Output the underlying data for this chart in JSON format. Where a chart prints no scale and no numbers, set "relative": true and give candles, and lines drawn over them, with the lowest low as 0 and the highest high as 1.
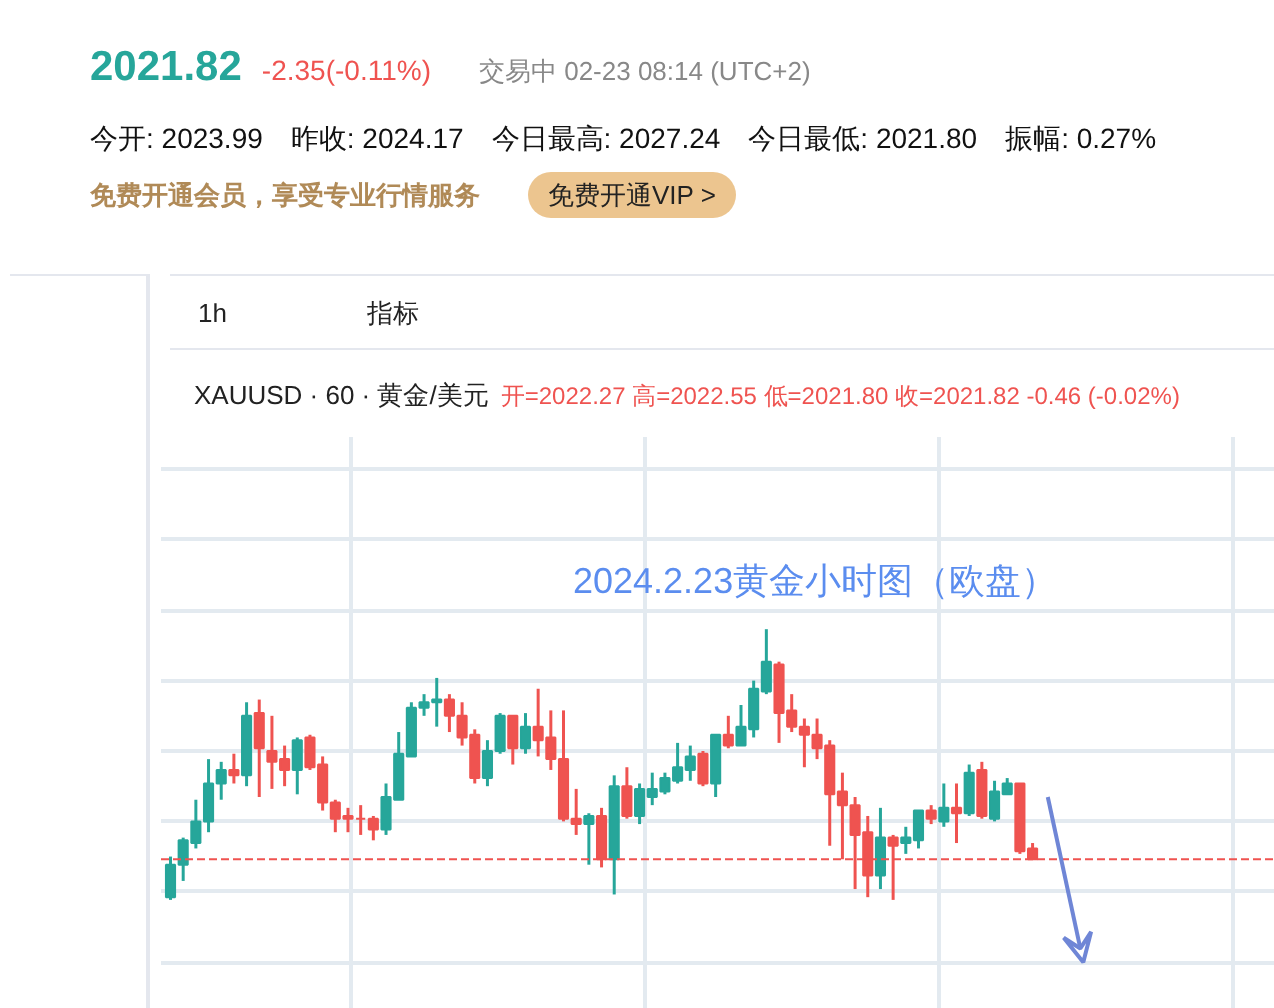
{
  "chart_data": {
    "type": "candlestick",
    "relative": true,
    "title": "2024.2.23黄金小时图（欧盘）",
    "annotations": [
      "2021.82",
      "-2.35(-0.11%)",
      "交易中 02-23 08:14 (UTC+2)",
      "今开: 2023.99",
      "昨收: 2024.17",
      "今日最高: 2027.24",
      "今日最低: 2021.80",
      "振幅: 0.27%",
      "免费开通会员，享受专业行情服务",
      "免费开通VIP >",
      "1h",
      "指标",
      "XAUUSD · 60 · 黄金/美元",
      "开=2022.27 高=2022.55 低=2021.80 收=2021.82 -0.46 (-0.02%)"
    ],
    "categories": [
      null,
      null,
      null,
      null,
      null,
      null,
      null,
      null,
      null,
      null,
      null,
      null,
      null,
      null,
      null,
      null,
      null,
      null,
      null,
      null,
      null,
      null,
      null,
      null,
      null,
      null,
      null,
      null,
      null,
      null,
      null,
      null,
      null,
      null,
      null,
      null,
      null,
      null,
      null,
      null,
      null,
      null,
      null,
      null,
      null,
      null,
      null,
      null,
      null,
      null,
      null,
      null,
      null,
      null,
      null,
      null,
      null,
      null,
      null,
      null,
      null,
      null,
      null,
      null,
      null,
      null,
      null,
      null,
      null
    ],
    "ohlc": [
      [
        0.01,
        0.16,
        0.0,
        0.13
      ],
      [
        0.13,
        0.23,
        0.07,
        0.22
      ],
      [
        0.21,
        0.37,
        0.19,
        0.29
      ],
      [
        0.29,
        0.52,
        0.25,
        0.43
      ],
      [
        0.43,
        0.51,
        0.37,
        0.48
      ],
      [
        0.48,
        0.54,
        0.43,
        0.46
      ],
      [
        0.46,
        0.73,
        0.42,
        0.68
      ],
      [
        0.69,
        0.74,
        0.38,
        0.56
      ],
      [
        0.55,
        0.68,
        0.41,
        0.51
      ],
      [
        0.52,
        0.57,
        0.42,
        0.48
      ],
      [
        0.48,
        0.6,
        0.39,
        0.59
      ],
      [
        0.6,
        0.61,
        0.48,
        0.49
      ],
      [
        0.5,
        0.53,
        0.33,
        0.36
      ],
      [
        0.36,
        0.37,
        0.25,
        0.3
      ],
      [
        0.31,
        0.34,
        0.25,
        0.3
      ],
      [
        0.3,
        0.35,
        0.24,
        0.3
      ],
      [
        0.3,
        0.31,
        0.22,
        0.26
      ],
      [
        0.26,
        0.43,
        0.24,
        0.38
      ],
      [
        0.37,
        0.62,
        0.37,
        0.54
      ],
      [
        0.53,
        0.73,
        0.53,
        0.71
      ],
      [
        0.71,
        0.76,
        0.68,
        0.73
      ],
      [
        0.73,
        0.82,
        0.64,
        0.74
      ],
      [
        0.74,
        0.76,
        0.62,
        0.68
      ],
      [
        0.68,
        0.73,
        0.57,
        0.6
      ],
      [
        0.61,
        0.63,
        0.43,
        0.45
      ],
      [
        0.45,
        0.59,
        0.42,
        0.55
      ],
      [
        0.55,
        0.69,
        0.54,
        0.68
      ],
      [
        0.68,
        0.68,
        0.5,
        0.56
      ],
      [
        0.56,
        0.69,
        0.54,
        0.64
      ],
      [
        0.64,
        0.78,
        0.53,
        0.59
      ],
      [
        0.6,
        0.7,
        0.48,
        0.52
      ],
      [
        0.52,
        0.7,
        0.29,
        0.3
      ],
      [
        0.3,
        0.41,
        0.24,
        0.28
      ],
      [
        0.28,
        0.32,
        0.13,
        0.31
      ],
      [
        0.31,
        0.34,
        0.12,
        0.15
      ],
      [
        0.15,
        0.46,
        0.02,
        0.42
      ],
      [
        0.42,
        0.49,
        0.3,
        0.31
      ],
      [
        0.31,
        0.43,
        0.28,
        0.41
      ],
      [
        0.38,
        0.47,
        0.35,
        0.41
      ],
      [
        0.4,
        0.47,
        0.39,
        0.45
      ],
      [
        0.44,
        0.58,
        0.43,
        0.49
      ],
      [
        0.48,
        0.57,
        0.44,
        0.53
      ],
      [
        0.54,
        0.55,
        0.42,
        0.43
      ],
      [
        0.43,
        0.61,
        0.38,
        0.61
      ],
      [
        0.61,
        0.68,
        0.56,
        0.57
      ],
      [
        0.57,
        0.72,
        0.57,
        0.64
      ],
      [
        0.63,
        0.81,
        0.6,
        0.78
      ],
      [
        0.77,
        1.0,
        0.76,
        0.88
      ],
      [
        0.87,
        0.88,
        0.58,
        0.69
      ],
      [
        0.7,
        0.76,
        0.62,
        0.64
      ],
      [
        0.64,
        0.67,
        0.49,
        0.61
      ],
      [
        0.61,
        0.67,
        0.52,
        0.56
      ],
      [
        0.57,
        0.59,
        0.2,
        0.39
      ],
      [
        0.4,
        0.47,
        0.15,
        0.35
      ],
      [
        0.35,
        0.38,
        0.04,
        0.24
      ],
      [
        0.25,
        0.31,
        0.01,
        0.09
      ],
      [
        0.09,
        0.34,
        0.04,
        0.23
      ],
      [
        0.23,
        0.24,
        0.0,
        0.2
      ],
      [
        0.21,
        0.27,
        0.17,
        0.23
      ],
      [
        0.22,
        0.33,
        0.19,
        0.33
      ],
      [
        0.33,
        0.35,
        0.28,
        0.3
      ],
      [
        0.29,
        0.43,
        0.27,
        0.34
      ],
      [
        0.34,
        0.43,
        0.21,
        0.32
      ],
      [
        0.32,
        0.5,
        0.31,
        0.47
      ],
      [
        0.48,
        0.51,
        0.3,
        0.31
      ],
      [
        0.3,
        0.44,
        0.29,
        0.4
      ],
      [
        0.39,
        0.45,
        0.39,
        0.43
      ],
      [
        0.43,
        0.43,
        0.17,
        0.18
      ],
      [
        0.19,
        0.21,
        0.15,
        0.15
      ]
    ],
    "colors": [
      "#26a69a",
      "#26a69a",
      "#26a69a",
      "#26a69a",
      "#26a69a",
      "#ef5350",
      "#26a69a",
      "#ef5350",
      "#ef5350",
      "#ef5350",
      "#26a69a",
      "#ef5350",
      "#ef5350",
      "#ef5350",
      "#ef5350",
      "#ef5350",
      "#ef5350",
      "#26a69a",
      "#26a69a",
      "#26a69a",
      "#26a69a",
      "#26a69a",
      "#ef5350",
      "#ef5350",
      "#ef5350",
      "#26a69a",
      "#26a69a",
      "#ef5350",
      "#26a69a",
      "#ef5350",
      "#ef5350",
      "#ef5350",
      "#ef5350",
      "#26a69a",
      "#ef5350",
      "#26a69a",
      "#ef5350",
      "#26a69a",
      "#26a69a",
      "#26a69a",
      "#26a69a",
      "#26a69a",
      "#ef5350",
      "#26a69a",
      "#ef5350",
      "#26a69a",
      "#26a69a",
      "#26a69a",
      "#ef5350",
      "#ef5350",
      "#ef5350",
      "#ef5350",
      "#ef5350",
      "#ef5350",
      "#ef5350",
      "#ef5350",
      "#26a69a",
      "#ef5350",
      "#26a69a",
      "#26a69a",
      "#ef5350",
      "#26a69a",
      "#ef5350",
      "#26a69a",
      "#ef5350",
      "#26a69a",
      "#26a69a",
      "#ef5350",
      "#ef5350"
    ],
    "ref_lines": [
      {
        "axis": "y",
        "value": 0.15,
        "color": "#ef5350",
        "line_style": "dashed"
      }
    ],
    "grid": true
  }
}
